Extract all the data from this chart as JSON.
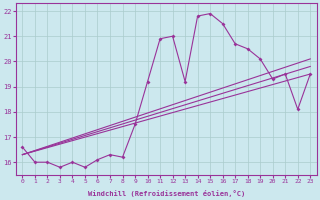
{
  "x": [
    0,
    1,
    2,
    3,
    4,
    5,
    6,
    7,
    8,
    9,
    10,
    11,
    12,
    13,
    14,
    15,
    16,
    17,
    18,
    19,
    20,
    21,
    22,
    23
  ],
  "y_main": [
    16.6,
    16.0,
    16.0,
    15.8,
    16.0,
    15.8,
    16.1,
    16.3,
    16.2,
    17.5,
    19.2,
    20.9,
    21.0,
    19.2,
    21.8,
    21.9,
    21.5,
    20.7,
    20.5,
    20.1,
    19.3,
    19.5,
    18.1,
    19.5
  ],
  "trend1_x": [
    0,
    23
  ],
  "trend1_y": [
    16.3,
    19.5
  ],
  "trend2_x": [
    0,
    23
  ],
  "trend2_y": [
    16.3,
    19.8
  ],
  "trend3_x": [
    0,
    23
  ],
  "trend3_y": [
    16.3,
    20.1
  ],
  "bg_color": "#cce8ee",
  "line_color": "#993399",
  "grid_color": "#aacccc",
  "xlabel": "Windchill (Refroidissement éolien,°C)",
  "xlim": [
    -0.5,
    23.5
  ],
  "ylim": [
    15.5,
    22.3
  ],
  "yticks": [
    16,
    17,
    18,
    19,
    20,
    21,
    22
  ],
  "xticks": [
    0,
    1,
    2,
    3,
    4,
    5,
    6,
    7,
    8,
    9,
    10,
    11,
    12,
    13,
    14,
    15,
    16,
    17,
    18,
    19,
    20,
    21,
    22,
    23
  ]
}
